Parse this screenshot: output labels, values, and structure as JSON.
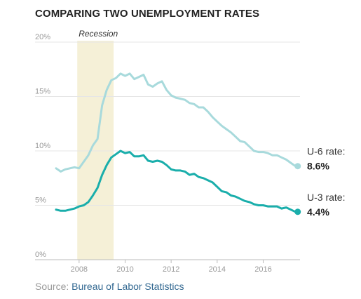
{
  "title": "COMPARING TWO UNEMPLOYMENT RATES",
  "source": {
    "prefix": "Source: ",
    "name": "Bureau of Labor Statistics"
  },
  "colors": {
    "u6": "#a8dadc",
    "u3": "#1aaeab",
    "recession": "#f5f0d7",
    "grid": "#e6e6e6",
    "axis": "#999999"
  },
  "chart_data": {
    "type": "line",
    "title": "COMPARING TWO UNEMPLOYMENT RATES",
    "xlabel": "",
    "ylabel": "",
    "xlim": [
      2007.0,
      2017.6
    ],
    "ylim": [
      0,
      20
    ],
    "grid": true,
    "y_ticks": [
      0,
      5,
      10,
      15,
      20
    ],
    "y_tick_labels": [
      "0%",
      "5%",
      "10%",
      "15%",
      "20%"
    ],
    "x_ticks": [
      2008,
      2010,
      2012,
      2014,
      2016
    ],
    "x_tick_labels": [
      "2008",
      "2010",
      "2012",
      "2014",
      "2016"
    ],
    "annotations": [
      {
        "label": "Recession",
        "x_start": 2007.92,
        "x_end": 2009.5
      }
    ],
    "series": [
      {
        "id": "u6",
        "label": "U-6 rate:",
        "end_value_label": "8.6%",
        "x": [
          2007.0,
          2007.2,
          2007.4,
          2007.6,
          2007.8,
          2008.0,
          2008.2,
          2008.4,
          2008.6,
          2008.8,
          2009.0,
          2009.2,
          2009.4,
          2009.6,
          2009.8,
          2010.0,
          2010.2,
          2010.4,
          2010.6,
          2010.8,
          2011.0,
          2011.2,
          2011.4,
          2011.6,
          2011.8,
          2012.0,
          2012.2,
          2012.4,
          2012.6,
          2012.8,
          2013.0,
          2013.2,
          2013.4,
          2013.6,
          2013.8,
          2014.0,
          2014.2,
          2014.4,
          2014.6,
          2014.8,
          2015.0,
          2015.2,
          2015.4,
          2015.6,
          2015.8,
          2016.0,
          2016.2,
          2016.4,
          2016.6,
          2016.8,
          2017.0,
          2017.2,
          2017.4,
          2017.5
        ],
        "values": [
          8.4,
          8.1,
          8.3,
          8.4,
          8.5,
          8.4,
          9.0,
          9.6,
          10.5,
          11.1,
          14.2,
          15.6,
          16.5,
          16.7,
          17.1,
          16.9,
          17.1,
          16.6,
          16.8,
          17.0,
          16.1,
          15.9,
          16.2,
          16.4,
          15.6,
          15.1,
          14.9,
          14.8,
          14.7,
          14.4,
          14.3,
          14.0,
          14.0,
          13.6,
          13.1,
          12.7,
          12.3,
          12.0,
          11.7,
          11.3,
          10.9,
          10.8,
          10.4,
          10.0,
          9.9,
          9.9,
          9.8,
          9.6,
          9.6,
          9.4,
          9.2,
          8.9,
          8.6,
          8.6
        ]
      },
      {
        "id": "u3",
        "label": "U-3 rate:",
        "end_value_label": "4.4%",
        "x": [
          2007.0,
          2007.2,
          2007.4,
          2007.6,
          2007.8,
          2008.0,
          2008.2,
          2008.4,
          2008.6,
          2008.8,
          2009.0,
          2009.2,
          2009.4,
          2009.6,
          2009.8,
          2010.0,
          2010.2,
          2010.4,
          2010.6,
          2010.8,
          2011.0,
          2011.2,
          2011.4,
          2011.6,
          2011.8,
          2012.0,
          2012.2,
          2012.4,
          2012.6,
          2012.8,
          2013.0,
          2013.2,
          2013.4,
          2013.6,
          2013.8,
          2014.0,
          2014.2,
          2014.4,
          2014.6,
          2014.8,
          2015.0,
          2015.2,
          2015.4,
          2015.6,
          2015.8,
          2016.0,
          2016.2,
          2016.4,
          2016.6,
          2016.8,
          2017.0,
          2017.2,
          2017.4,
          2017.5
        ],
        "values": [
          4.6,
          4.5,
          4.5,
          4.6,
          4.7,
          4.9,
          5.0,
          5.3,
          5.9,
          6.6,
          7.8,
          8.7,
          9.4,
          9.7,
          10.0,
          9.8,
          9.9,
          9.5,
          9.5,
          9.6,
          9.1,
          9.0,
          9.1,
          9.0,
          8.7,
          8.3,
          8.2,
          8.2,
          8.1,
          7.8,
          7.9,
          7.6,
          7.5,
          7.3,
          7.1,
          6.7,
          6.3,
          6.2,
          5.9,
          5.8,
          5.6,
          5.4,
          5.3,
          5.1,
          5.0,
          5.0,
          4.9,
          4.9,
          4.9,
          4.7,
          4.8,
          4.6,
          4.4,
          4.4
        ]
      }
    ]
  }
}
